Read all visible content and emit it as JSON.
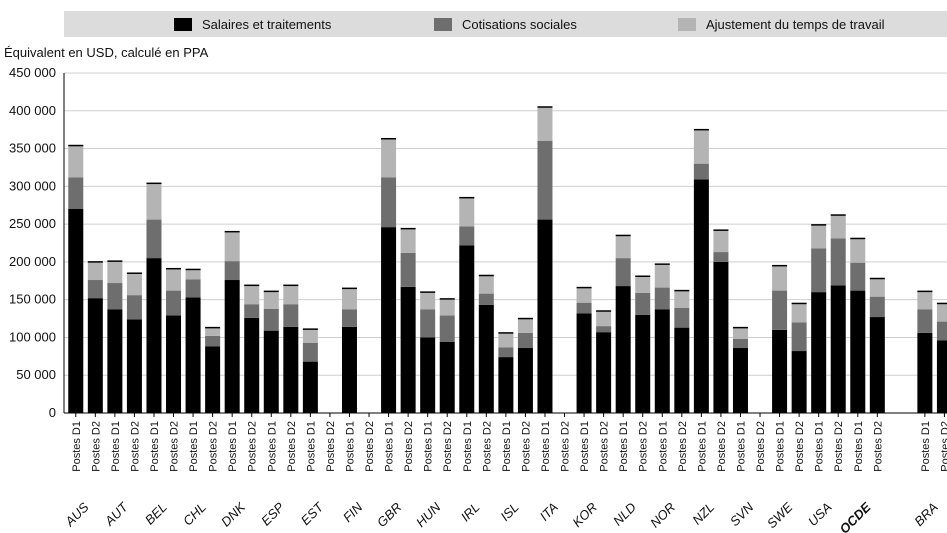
{
  "legend": {
    "items": [
      {
        "label": "Salaires et traitements",
        "color": "#000000"
      },
      {
        "label": "Cotisations sociales",
        "color": "#6e6e6e"
      },
      {
        "label": "Ajustement du temps de travail",
        "color": "#b4b4b4"
      }
    ]
  },
  "chart_data": {
    "type": "bar",
    "stacked": true,
    "ylabel": "Équivalent en USD, calculé en PPA",
    "ylim": [
      0,
      450000
    ],
    "yticks": [
      0,
      50000,
      100000,
      150000,
      200000,
      250000,
      300000,
      350000,
      400000,
      450000
    ],
    "ytick_labels": [
      "0",
      "50 000",
      "100 000",
      "150 000",
      "200 000",
      "250 000",
      "300 000",
      "350 000",
      "400 000",
      "450 000"
    ],
    "grid": "horizontal",
    "legend_position": "top",
    "groups": [
      "AUS",
      "AUT",
      "BEL",
      "CHL",
      "DNK",
      "ESP",
      "EST",
      "FIN",
      "GBR",
      "HUN",
      "IRL",
      "ISL",
      "ITA",
      "KOR",
      "NLD",
      "NOR",
      "NZL",
      "SVN",
      "SWE",
      "USA",
      "OCDE",
      "BRA"
    ],
    "highlight_group": "OCDE",
    "subcategories": [
      "Postes D1",
      "Postes D2"
    ],
    "series": [
      {
        "name": "Salaires et traitements",
        "values": [
          [
            270000,
            152000
          ],
          [
            137000,
            124000
          ],
          [
            205000,
            129000
          ],
          [
            153000,
            88000
          ],
          [
            176000,
            126000
          ],
          [
            109000,
            114000
          ],
          [
            68000,
            null
          ],
          [
            114000,
            null
          ],
          [
            246000,
            167000
          ],
          [
            100000,
            94000
          ],
          [
            222000,
            143000
          ],
          [
            74000,
            86000
          ],
          [
            256000,
            null
          ],
          [
            132000,
            107000
          ],
          [
            168000,
            130000
          ],
          [
            137000,
            113000
          ],
          [
            309000,
            200000
          ],
          [
            86000,
            null
          ],
          [
            110000,
            82000
          ],
          [
            160000,
            169000
          ],
          [
            162000,
            127000
          ],
          [
            106000,
            96000
          ]
        ]
      },
      {
        "name": "Cotisations sociales",
        "values": [
          [
            42000,
            24000
          ],
          [
            35000,
            32000
          ],
          [
            51000,
            33000
          ],
          [
            24000,
            14000
          ],
          [
            25000,
            18000
          ],
          [
            29000,
            30000
          ],
          [
            25000,
            null
          ],
          [
            23000,
            null
          ],
          [
            66000,
            45000
          ],
          [
            37000,
            35000
          ],
          [
            25000,
            15000
          ],
          [
            13000,
            20000
          ],
          [
            104000,
            null
          ],
          [
            14000,
            8000
          ],
          [
            37000,
            29000
          ],
          [
            29000,
            26000
          ],
          [
            21000,
            13000
          ],
          [
            12000,
            null
          ],
          [
            52000,
            38000
          ],
          [
            58000,
            62000
          ],
          [
            37000,
            27000
          ],
          [
            31000,
            25000
          ]
        ]
      },
      {
        "name": "Ajustement du temps de travail",
        "values": [
          [
            42000,
            24000
          ],
          [
            29000,
            29000
          ],
          [
            48000,
            29000
          ],
          [
            13000,
            11000
          ],
          [
            39000,
            25000
          ],
          [
            23000,
            25000
          ],
          [
            18000,
            null
          ],
          [
            28000,
            null
          ],
          [
            51000,
            32000
          ],
          [
            23000,
            22000
          ],
          [
            38000,
            24000
          ],
          [
            19000,
            19000
          ],
          [
            45000,
            null
          ],
          [
            20000,
            20000
          ],
          [
            30000,
            22000
          ],
          [
            31000,
            23000
          ],
          [
            45000,
            29000
          ],
          [
            15000,
            null
          ],
          [
            33000,
            25000
          ],
          [
            31000,
            31000
          ],
          [
            32000,
            24000
          ],
          [
            24000,
            24000
          ]
        ]
      }
    ]
  }
}
